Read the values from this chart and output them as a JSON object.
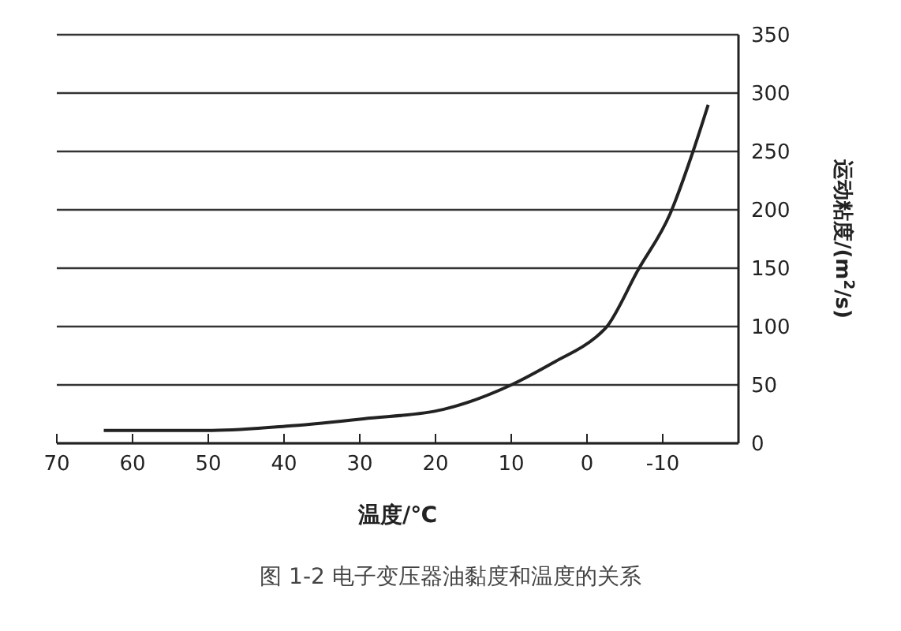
{
  "chart_data": {
    "type": "line",
    "xlabel": "温度/℃",
    "ylabel": "运动粘度/(m$^{2}$/s)",
    "annotations": [
      "图 1-2 电子变压器油黏度和温度的关系"
    ],
    "x": [
      63.8,
      49.5,
      39,
      29.5,
      19,
      10,
      4.2,
      -1,
      -2.5,
      -6.7,
      -11,
      -14,
      -16
    ],
    "series": [
      {
        "color": "#222222",
        "values": [
          11,
          11,
          15,
          21,
          29,
          50,
          70,
          90,
          99,
          148,
          197,
          250,
          290
        ]
      }
    ],
    "xlim": [
      70,
      -20
    ],
    "xticks": [
      70,
      60,
      50,
      40,
      30,
      20,
      10,
      0,
      -10
    ],
    "ylim": [
      0,
      350
    ],
    "yticks": [
      0,
      50,
      100,
      150,
      200,
      250,
      300,
      350
    ],
    "grid": "y",
    "marker": "none",
    "line_style": "solid"
  }
}
